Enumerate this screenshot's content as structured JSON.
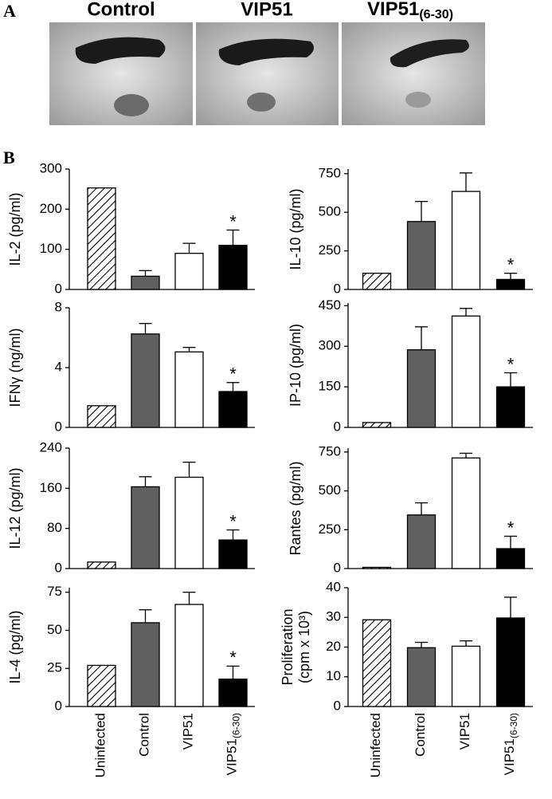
{
  "panel_a": {
    "label": "A",
    "photos": [
      {
        "label": "Control"
      },
      {
        "label": "VIP51"
      },
      {
        "label": "VIP51",
        "subscript": "(6-30)"
      }
    ]
  },
  "panel_b": {
    "label": "B"
  },
  "chart_data": [
    {
      "type": "bar",
      "ylabel": "IL-2 (pg/ml)",
      "values": [
        253,
        33,
        90,
        110
      ],
      "errors": [
        null,
        14,
        25,
        38
      ],
      "significance": [
        null,
        null,
        null,
        "*"
      ],
      "fills": [
        "hatched",
        "#606060",
        "#ffffff",
        "#000000"
      ],
      "ylim": [
        0,
        300
      ],
      "yticks": [
        0,
        100,
        200,
        300
      ]
    },
    {
      "type": "bar",
      "ylabel": "IL-10 (pg/ml)",
      "values": [
        105,
        440,
        635,
        65
      ],
      "errors": [
        null,
        130,
        120,
        40
      ],
      "significance": [
        null,
        null,
        null,
        "*"
      ],
      "fills": [
        "hatched",
        "#606060",
        "#ffffff",
        "#000000"
      ],
      "ylim": [
        0,
        780
      ],
      "yticks": [
        0,
        250,
        500,
        750
      ]
    },
    {
      "type": "bar",
      "ylabel": "IFNγ (ng/ml)",
      "values": [
        1.45,
        6.25,
        5.05,
        2.4
      ],
      "errors": [
        null,
        0.7,
        0.3,
        0.6
      ],
      "significance": [
        null,
        null,
        null,
        "*"
      ],
      "fills": [
        "hatched",
        "#606060",
        "#ffffff",
        "#000000"
      ],
      "ylim": [
        0,
        8
      ],
      "yticks": [
        0,
        4,
        8
      ]
    },
    {
      "type": "bar",
      "ylabel": "IP-10 (pg/ml)",
      "values": [
        18,
        287,
        412,
        150
      ],
      "errors": [
        null,
        85,
        28,
        52
      ],
      "significance": [
        null,
        null,
        null,
        "*"
      ],
      "fills": [
        "hatched",
        "#606060",
        "#ffffff",
        "#000000"
      ],
      "ylim": [
        0,
        460
      ],
      "yticks": [
        0,
        150,
        300,
        450
      ]
    },
    {
      "type": "bar",
      "ylabel": "IL-12 (pg/ml)",
      "values": [
        13,
        163,
        182,
        57
      ],
      "errors": [
        null,
        20,
        30,
        20
      ],
      "significance": [
        null,
        null,
        null,
        "*"
      ],
      "fills": [
        "hatched",
        "#606060",
        "#ffffff",
        "#000000"
      ],
      "ylim": [
        0,
        240
      ],
      "yticks": [
        0,
        80,
        160,
        240
      ]
    },
    {
      "type": "bar",
      "ylabel": "Rantes (pg/ml)",
      "values": [
        8,
        345,
        712,
        128
      ],
      "errors": [
        null,
        78,
        30,
        80
      ],
      "significance": [
        null,
        null,
        null,
        "*"
      ],
      "fills": [
        "hatched",
        "#606060",
        "#ffffff",
        "#000000"
      ],
      "ylim": [
        0,
        775
      ],
      "yticks": [
        0,
        250,
        500,
        750
      ]
    },
    {
      "type": "bar",
      "ylabel": "IL-4 (pg/ml)",
      "categories": [
        "Uninfected",
        "Control",
        "VIP51",
        "VIP51"
      ],
      "category_subscripts": [
        null,
        null,
        null,
        "(6-30)"
      ],
      "values": [
        27,
        55,
        67,
        18
      ],
      "errors": [
        null,
        8.5,
        8,
        8.5
      ],
      "significance": [
        null,
        null,
        null,
        "*"
      ],
      "fills": [
        "hatched",
        "#606060",
        "#ffffff",
        "#000000"
      ],
      "ylim": [
        0,
        78
      ],
      "yticks": [
        0,
        25,
        50,
        75
      ]
    },
    {
      "type": "bar",
      "ylabel_lines": [
        "Proliferation",
        "(cpm x 10³)"
      ],
      "categories": [
        "Uninfected",
        "Control",
        "VIP51",
        "VIP51"
      ],
      "category_subscripts": [
        null,
        null,
        null,
        "(6-30)"
      ],
      "values": [
        29.2,
        19.8,
        20.3,
        29.8
      ],
      "errors": [
        null,
        1.8,
        1.8,
        7
      ],
      "fills": [
        "hatched",
        "#606060",
        "#ffffff",
        "#000000"
      ],
      "ylim": [
        0,
        40
      ],
      "yticks": [
        0,
        10,
        20,
        30,
        40
      ]
    }
  ]
}
